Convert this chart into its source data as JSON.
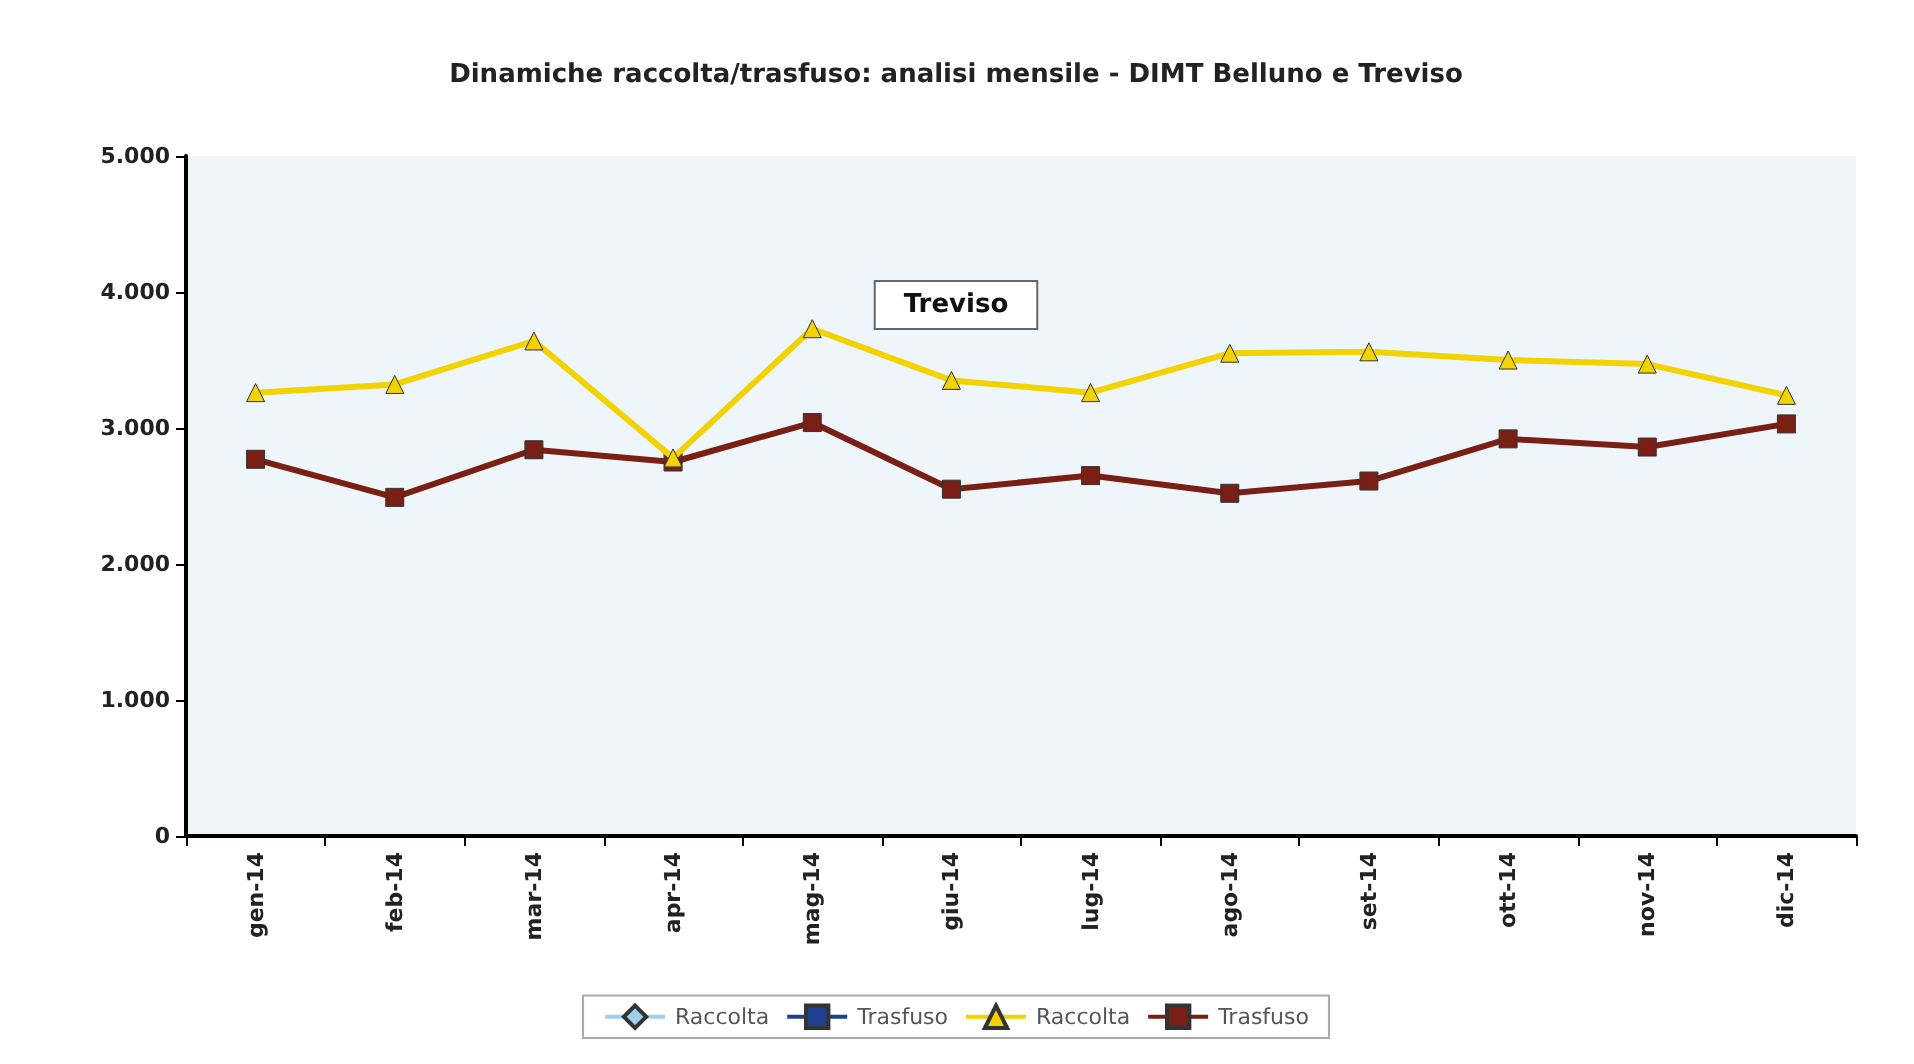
{
  "chart_data": {
    "type": "line",
    "title": "Dinamiche raccolta/trasfuso: analisi mensile - DIMT Belluno e Treviso",
    "categories": [
      "gen-14",
      "feb-14",
      "mar-14",
      "apr-14",
      "mag-14",
      "giu-14",
      "lug-14",
      "ago-14",
      "set-14",
      "ott-14",
      "nov-14",
      "dic-14"
    ],
    "series": [
      {
        "name": "Raccolta",
        "color": "#9fd0f0",
        "marker": "diamond",
        "values": [
          null,
          null,
          null,
          null,
          null,
          null,
          null,
          null,
          null,
          null,
          null,
          null
        ]
      },
      {
        "name": "Trasfuso",
        "color": "#1f3f8f",
        "marker": "square",
        "values": [
          null,
          null,
          null,
          null,
          null,
          null,
          null,
          null,
          null,
          null,
          null,
          null
        ]
      },
      {
        "name": "Raccolta",
        "color": "#f2d200",
        "marker": "triangle",
        "values": [
          3260,
          3320,
          3640,
          2780,
          3730,
          3350,
          3260,
          3550,
          3560,
          3500,
          3470,
          3240
        ]
      },
      {
        "name": "Trasfuso",
        "color": "#7a1f14",
        "marker": "square",
        "values": [
          2770,
          2490,
          2840,
          2750,
          3040,
          2550,
          2650,
          2520,
          2610,
          2920,
          2860,
          3030
        ]
      }
    ],
    "ylim": [
      0,
      5000
    ],
    "yticks": [
      0,
      {
        "value": 1000,
        "label": "1.000"
      },
      {
        "value": 2000,
        "label": "2.000"
      },
      {
        "value": 3000,
        "label": "3.000"
      },
      {
        "value": 4000,
        "label": "4.000"
      },
      {
        "value": 5000,
        "label": "5.000"
      }
    ],
    "annotations": [
      "Treviso"
    ],
    "grid": false,
    "legend": "bottom"
  }
}
